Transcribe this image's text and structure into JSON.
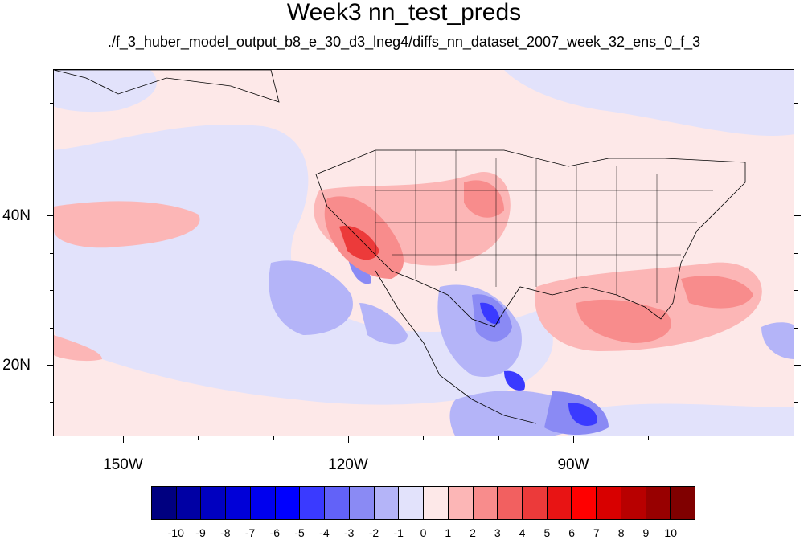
{
  "title": "Week3 nn_test_preds",
  "subtitle": "./f_3_huber_model_output_b8_e_30_d3_lneg4/diffs_nn_dataset_2007_week_32_ens_0_f_3",
  "map": {
    "lon_labels": [
      "150W",
      "120W",
      "90W"
    ],
    "lat_labels": [
      "40N",
      "20N"
    ],
    "background_color": "#fde8e8"
  },
  "colorbar": {
    "labels": [
      "-10",
      "-9",
      "-8",
      "-7",
      "-6",
      "-5",
      "-4",
      "-3",
      "-2",
      "-1",
      "0",
      "1",
      "2",
      "3",
      "4",
      "5",
      "6",
      "7",
      "8",
      "9",
      "10"
    ],
    "colors": [
      "#000080",
      "#0000a4",
      "#0000c0",
      "#0000d8",
      "#0000ee",
      "#0000ff",
      "#3a3aff",
      "#6262f8",
      "#8a8af4",
      "#b4b4f8",
      "#e2e2fb",
      "#fde8e8",
      "#fcb6b6",
      "#f88c8c",
      "#f26060",
      "#ec3a3a",
      "#e81414",
      "#ff0000",
      "#d80000",
      "#b80000",
      "#980000",
      "#800000"
    ]
  },
  "chart_data": {
    "type": "heatmap",
    "title": "Week3 nn_test_preds",
    "subtitle": "./f_3_huber_model_output_b8_e_30_d3_lneg4/diffs_nn_dataset_2007_week_32_ens_0_f_3",
    "x_ticks": [
      "150W",
      "120W",
      "90W"
    ],
    "y_ticks": [
      "40N",
      "20N"
    ],
    "colorbar_levels": [
      -10,
      -9,
      -8,
      -7,
      -6,
      -5,
      -4,
      -3,
      -2,
      -1,
      0,
      1,
      2,
      3,
      4,
      5,
      6,
      7,
      8,
      9,
      10
    ]
  }
}
